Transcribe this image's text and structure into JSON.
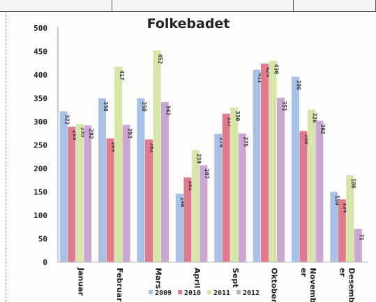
{
  "chart_data": {
    "type": "bar",
    "title": "Folkebadet",
    "xlabel": "",
    "ylabel": "",
    "ylim": [
      0,
      500
    ],
    "yticks": [
      0,
      50,
      100,
      150,
      200,
      250,
      300,
      350,
      400,
      450,
      500
    ],
    "grid": false,
    "legend_position": "bottom",
    "categories": [
      [
        "Januar"
      ],
      [
        "Februar"
      ],
      [
        "Mars"
      ],
      [
        "April"
      ],
      [
        "Sept"
      ],
      [
        "Oktober"
      ],
      [
        "Novemb",
        "er"
      ],
      [
        "Desemb",
        "er"
      ]
    ],
    "series": [
      {
        "name": "2009",
        "color": "#a9c1e6",
        "values": [
          322,
          350,
          350,
          146,
          274,
          411,
          396,
          150
        ]
      },
      {
        "name": "2010",
        "color": "#e07a8c",
        "values": [
          289,
          264,
          262,
          181,
          317,
          424,
          280,
          134
        ]
      },
      {
        "name": "2011",
        "color": "#d6e6a8",
        "values": [
          295,
          417,
          452,
          239,
          330,
          430,
          326,
          186
        ]
      },
      {
        "name": "2012",
        "color": "#cba7d3",
        "values": [
          292,
          293,
          342,
          207,
          275,
          351,
          302,
          71
        ]
      }
    ]
  }
}
